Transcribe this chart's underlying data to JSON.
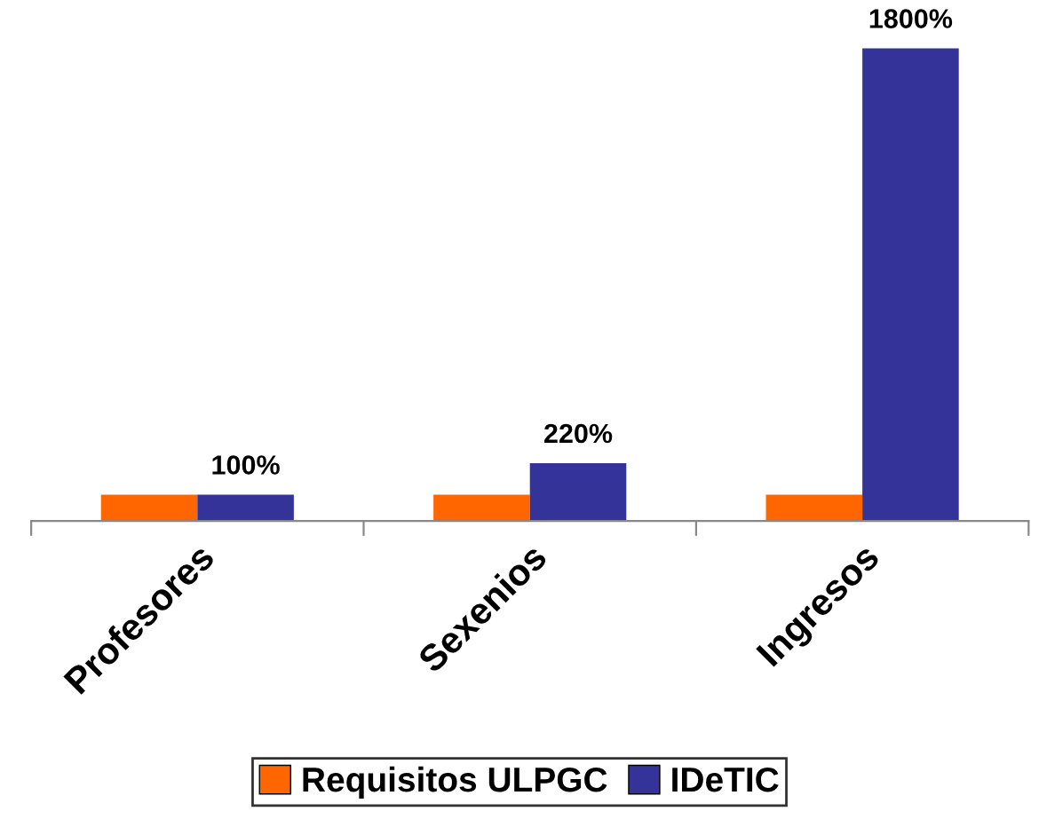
{
  "chart_data": {
    "type": "bar",
    "categories": [
      "Profesores",
      "Sexenios",
      "Ingresos"
    ],
    "series": [
      {
        "name": "Requisitos ULPGC",
        "color": "#ff6600",
        "values": [
          100,
          100,
          100
        ]
      },
      {
        "name": "IDeTIC",
        "color": "#333399",
        "values": [
          100,
          220,
          1800
        ],
        "value_labels": [
          "100%",
          "220%",
          "1800%"
        ]
      }
    ],
    "tick_labels": "x",
    "grid": false,
    "legend": "bottom"
  }
}
